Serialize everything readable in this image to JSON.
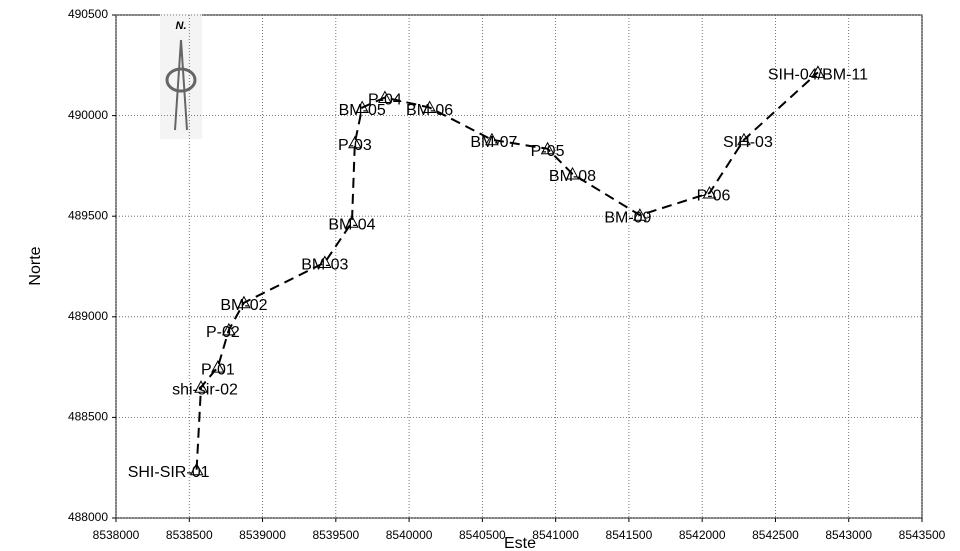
{
  "chart_data": {
    "type": "line",
    "x_label": "Este",
    "y_label": "Norte",
    "annotations": [
      "N."
    ],
    "x": [
      8538550,
      8538580,
      8538695,
      8538770,
      8538873,
      8539425,
      8539610,
      8539630,
      8539680,
      8539835,
      8540140,
      8540565,
      8540945,
      8541115,
      8541575,
      8542050,
      8542285,
      8542790
    ],
    "values": [
      488240,
      488650,
      488750,
      488935,
      489070,
      489270,
      489470,
      489865,
      490040,
      490090,
      490040,
      489880,
      489835,
      489710,
      489505,
      489615,
      489880,
      490215
    ],
    "point_labels": [
      "SHI-SIR-01",
      "shi-sir-02",
      "P-01",
      "P-02",
      "BM-02",
      "BM-03",
      "BM-04",
      "P-03",
      "BM-05",
      "P-04",
      "BM-06",
      "BM-07",
      "P-05",
      "BM-08",
      "BM-09",
      "P-06",
      "SIH-03",
      "SIH-04/BM-11"
    ],
    "color": "#000000",
    "xlim": [
      8538000,
      8543500
    ],
    "xticks": [
      8538000,
      8538500,
      8539000,
      8539500,
      8540000,
      8540500,
      8541000,
      8541500,
      8542000,
      8542500,
      8543000,
      8543500
    ],
    "ylim": [
      488000,
      490500
    ],
    "yticks": [
      488000,
      488500,
      489000,
      489500,
      490000,
      490500
    ],
    "grid": true
  }
}
